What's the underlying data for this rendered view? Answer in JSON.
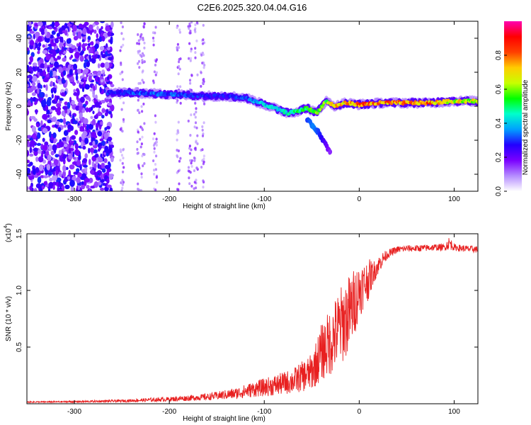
{
  "title": "C2E6.2025.320.04.04.G16",
  "chart_data": [
    {
      "type": "heatmap",
      "title": "C2E6.2025.320.04.04.G16",
      "xlabel": "Height of straight line (km)",
      "ylabel": "Frequency (Hz)",
      "xlim": [
        -350,
        125
      ],
      "ylim": [
        -50,
        50
      ],
      "xticks": [
        -300,
        -200,
        -100,
        0,
        100
      ],
      "yticks": [
        -40,
        -20,
        0,
        20,
        40
      ],
      "xtick_labels": [
        "-300",
        "-200",
        "-100",
        "0",
        "100"
      ],
      "ytick_labels": [
        "-40",
        "-20",
        "0",
        "20",
        "40"
      ],
      "colorbar": {
        "label": "Normalized spectral amplitude",
        "range": [
          0.0,
          1.0
        ],
        "ticks": [
          0.0,
          0.2,
          0.4,
          0.6,
          0.8
        ],
        "tick_labels": [
          "0.0",
          "0.2",
          "0.4",
          "0.6",
          "0.8"
        ],
        "colors": [
          "#ffffff",
          "#b58cff",
          "#7a00ff",
          "#2200ff",
          "#00a0ff",
          "#00ffcc",
          "#00ff00",
          "#c8ff00",
          "#ffcc00",
          "#ff4000",
          "#ff0000",
          "#ff00b0"
        ]
      },
      "ridge": {
        "x": [
          -265,
          -240,
          -200,
          -160,
          -140,
          -120,
          -100,
          -85,
          -75,
          -65,
          -55,
          -45,
          -35,
          -25,
          -15,
          0,
          25,
          50,
          75,
          100,
          125
        ],
        "y": [
          8,
          8,
          7,
          6,
          6,
          5,
          1,
          -2,
          -4,
          -3,
          -1,
          -4,
          3,
          0,
          2,
          1,
          2,
          2,
          2,
          3,
          3
        ],
        "amplitude": [
          0.3,
          0.35,
          0.35,
          0.3,
          0.3,
          0.35,
          0.45,
          0.45,
          0.5,
          0.55,
          0.6,
          0.6,
          0.65,
          0.75,
          0.8,
          0.85,
          0.85,
          0.85,
          0.85,
          0.75,
          0.7
        ]
      },
      "branch": {
        "x": [
          -55,
          -48,
          -42,
          -38,
          -34,
          -30
        ],
        "y": [
          -8,
          -12,
          -16,
          -20,
          -24,
          -28
        ],
        "amplitude": [
          0.3,
          0.35,
          0.3,
          0.25,
          0.2,
          0.15
        ]
      },
      "noise_region_xlim": [
        -350,
        -260
      ]
    },
    {
      "type": "line",
      "xlabel": "Height of straight line (km)",
      "ylabel": "SNR (10 * v/v)",
      "multiplier_label": "(x10",
      "multiplier_exponent": "4",
      "multiplier_close": ")",
      "xlim": [
        -350,
        125
      ],
      "ylim": [
        0,
        1.5
      ],
      "xticks": [
        -300,
        -200,
        -100,
        0,
        100
      ],
      "yticks": [
        0.5,
        1.0,
        1.5
      ],
      "xtick_labels": [
        "-300",
        "-200",
        "-100",
        "0",
        "100"
      ],
      "ytick_labels": [
        "0.5",
        "1.0",
        "1.5"
      ],
      "color": "#e82020",
      "series": [
        {
          "name": "SNR",
          "x": [
            -350,
            -300,
            -250,
            -200,
            -160,
            -130,
            -110,
            -90,
            -70,
            -50,
            -40,
            -30,
            -20,
            -10,
            -5,
            0,
            5,
            10,
            15,
            20,
            25,
            30,
            40,
            50,
            60,
            80,
            90,
            95,
            100,
            110,
            125
          ],
          "values": [
            0.015,
            0.018,
            0.025,
            0.04,
            0.06,
            0.09,
            0.13,
            0.16,
            0.2,
            0.28,
            0.45,
            0.55,
            0.68,
            0.8,
            0.9,
            1.0,
            1.05,
            1.1,
            1.16,
            1.22,
            1.28,
            1.32,
            1.36,
            1.37,
            1.37,
            1.38,
            1.38,
            1.42,
            1.38,
            1.37,
            1.36
          ],
          "spread": [
            0.005,
            0.008,
            0.012,
            0.02,
            0.03,
            0.05,
            0.07,
            0.09,
            0.11,
            0.16,
            0.25,
            0.3,
            0.35,
            0.35,
            0.3,
            0.25,
            0.2,
            0.18,
            0.1,
            0.08,
            0.06,
            0.04,
            0.03,
            0.03,
            0.03,
            0.03,
            0.03,
            0.06,
            0.03,
            0.03,
            0.03
          ]
        }
      ]
    }
  ]
}
